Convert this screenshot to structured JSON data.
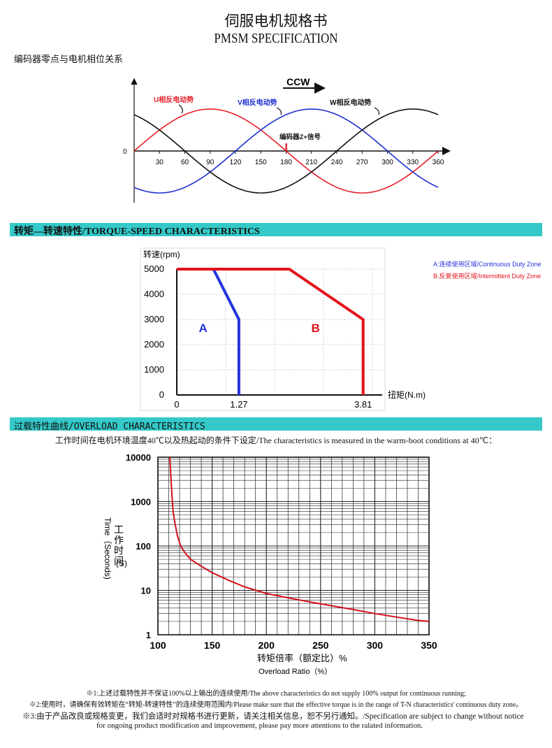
{
  "header": {
    "title_cn": "伺服电机规格书",
    "title_en": "PMSM SPECIFICATION",
    "subtitle": "编码器零点与电机相位关系"
  },
  "phase_diagram": {
    "direction_label": "CCW",
    "u_label": "U相反电动势",
    "v_label": "V相反电动势",
    "w_label": "W相反电动势",
    "encoder_label": "编码器Z+信号",
    "origin_label": "0",
    "x_ticks": [
      "30",
      "60",
      "90",
      "120",
      "150",
      "180",
      "210",
      "240",
      "270",
      "300",
      "330",
      "360"
    ],
    "colors": {
      "u": "#e8202a",
      "v": "#1f2fd0",
      "w": "#111111"
    }
  },
  "sections": {
    "torque_speed": "转矩—转速特性/TORQUE-SPEED  CHARACTERISTICS",
    "overload": "过载特性曲线/OVERLOAD  CHARACTERISTICS"
  },
  "chart_data": [
    {
      "type": "line",
      "ylabel": "转速(rpm)",
      "xlabel": "扭矩(N.m)",
      "y_ticks": [
        "5000",
        "4000",
        "3000",
        "2000",
        "1000",
        "0"
      ],
      "x_ticks": [
        "0",
        "1.27",
        "3.81"
      ],
      "ylim": [
        0,
        5000
      ],
      "xlim": [
        0,
        4.2
      ],
      "grid": true,
      "series": [
        {
          "name": "A",
          "color": "#2233dd",
          "x": [
            0.75,
            1.27,
            1.27
          ],
          "y": [
            5000,
            3000,
            0
          ]
        },
        {
          "name": "B",
          "color": "#e3131b",
          "x": [
            0,
            2.3,
            3.81,
            3.81
          ],
          "y": [
            5000,
            5000,
            3000,
            0
          ]
        }
      ],
      "legend": [
        {
          "text": "A:连续使用区域/Continuous Duty  Zone",
          "color": "#2233dd"
        },
        {
          "text": "B:反复使用区域/Intermittent Duty  Zone",
          "color": "#e3131b"
        }
      ],
      "legend_position": "top-right"
    },
    {
      "type": "line",
      "scale": "log-y",
      "ylabel_cn": "工作时间",
      "ylabel_en": "Time（Seconds)",
      "ylabel_unit": "(S)",
      "xlabel_cn": "转矩倍率（额定比）%",
      "xlabel_en": "Overload Ratio（%）",
      "x_ticks": [
        "100",
        "150",
        "200",
        "250",
        "300",
        "350"
      ],
      "y_ticks": [
        "10000",
        "1000",
        "100",
        "10",
        "1"
      ],
      "xlim": [
        100,
        350
      ],
      "ylim": [
        1,
        10000
      ],
      "grid": true,
      "series": [
        {
          "color": "#d6101a",
          "x": [
            111,
            112,
            113,
            114,
            116,
            118,
            121,
            125,
            130,
            140,
            150,
            165,
            180,
            200,
            220,
            240,
            260,
            280,
            300,
            320,
            340,
            350
          ],
          "y": [
            10000,
            3500,
            1300,
            600,
            300,
            170,
            100,
            70,
            50,
            35,
            25,
            17,
            12,
            8.5,
            6.8,
            5.5,
            4.5,
            3.7,
            3.0,
            2.5,
            2.1,
            2.0
          ]
        }
      ]
    }
  ],
  "overload_condition": "工作时间在电机环境温度40℃以及热起动的条件下设定/The characteristics is measured in the warm-boot conditions at 40℃：",
  "notes": {
    "n1": "※1:上述过载特性并不保证100%以上输出的连续使用/The above characteristics do not supply 100% output for continuous running;",
    "n2": "※2:使用时，请确保有效转矩在“转矩-转速特性”的连续使用范围内/Please make sure that the effective torque is in the range of T-N characteristics' continuous duty zone。",
    "n3a": "※3:由于产品改良或规格变更，我们会适时对规格书进行更新，请关注相关信息，恕不另行通知。/Specification are subject to change without notice",
    "n3b": "for ongoing product modification and improvement, please pay more attentions to the ralated information."
  }
}
